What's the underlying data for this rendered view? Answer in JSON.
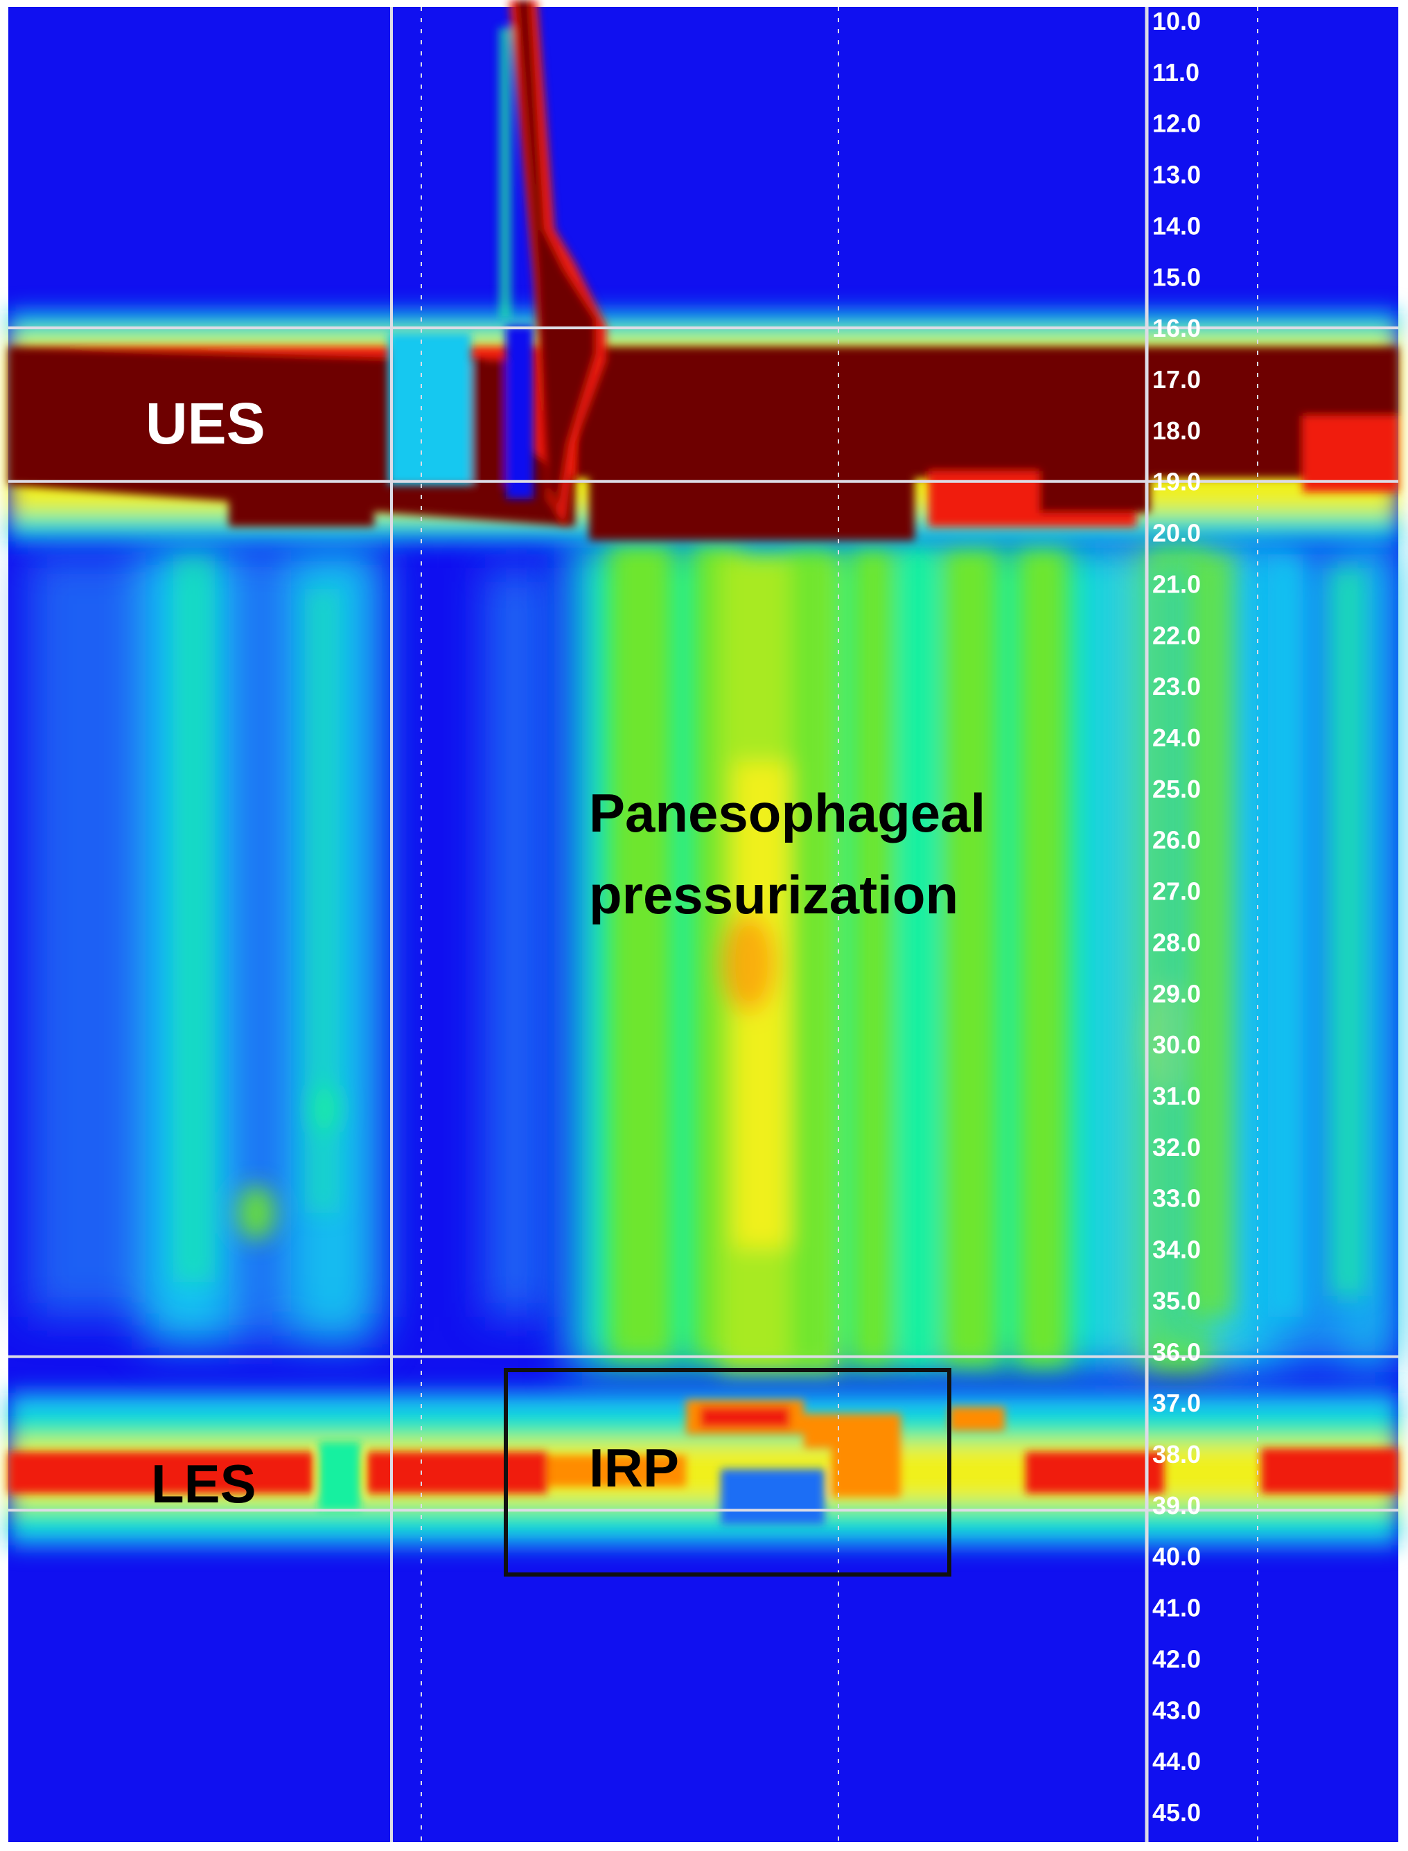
{
  "chart_data": {
    "type": "heatmap",
    "colors": {
      "background": "#1010f0",
      "scale": [
        "#1010f0",
        "#1e6ef5",
        "#14c8f0",
        "#19f0a0",
        "#6ee62d",
        "#f0f01e",
        "#ff8c00",
        "#f01e0a",
        "#6e0000"
      ],
      "markers": "#dcdce6",
      "irp_box": "#111111"
    },
    "y_axis": {
      "ylim": [
        10,
        45
      ],
      "ticks": [
        "10.0",
        "11.0",
        "12.0",
        "13.0",
        "14.0",
        "15.0",
        "16.0",
        "17.0",
        "18.0",
        "19.0",
        "20.0",
        "21.0",
        "22.0",
        "23.0",
        "24.0",
        "25.0",
        "26.0",
        "27.0",
        "28.0",
        "29.0",
        "30.0",
        "31.0",
        "32.0",
        "33.0",
        "34.0",
        "35.0",
        "36.0",
        "37.0",
        "38.0",
        "39.0",
        "40.0",
        "41.0",
        "42.0",
        "43.0",
        "44.0",
        "45.0"
      ]
    },
    "sensor_lines": [
      16.0,
      19.0,
      36.1,
      39.1
    ],
    "annotations": {
      "ues": "UES",
      "les": "LES",
      "irp": "IRP",
      "pressurization_line1": "Panesophageal",
      "pressurization_line2": "pressurization"
    }
  }
}
